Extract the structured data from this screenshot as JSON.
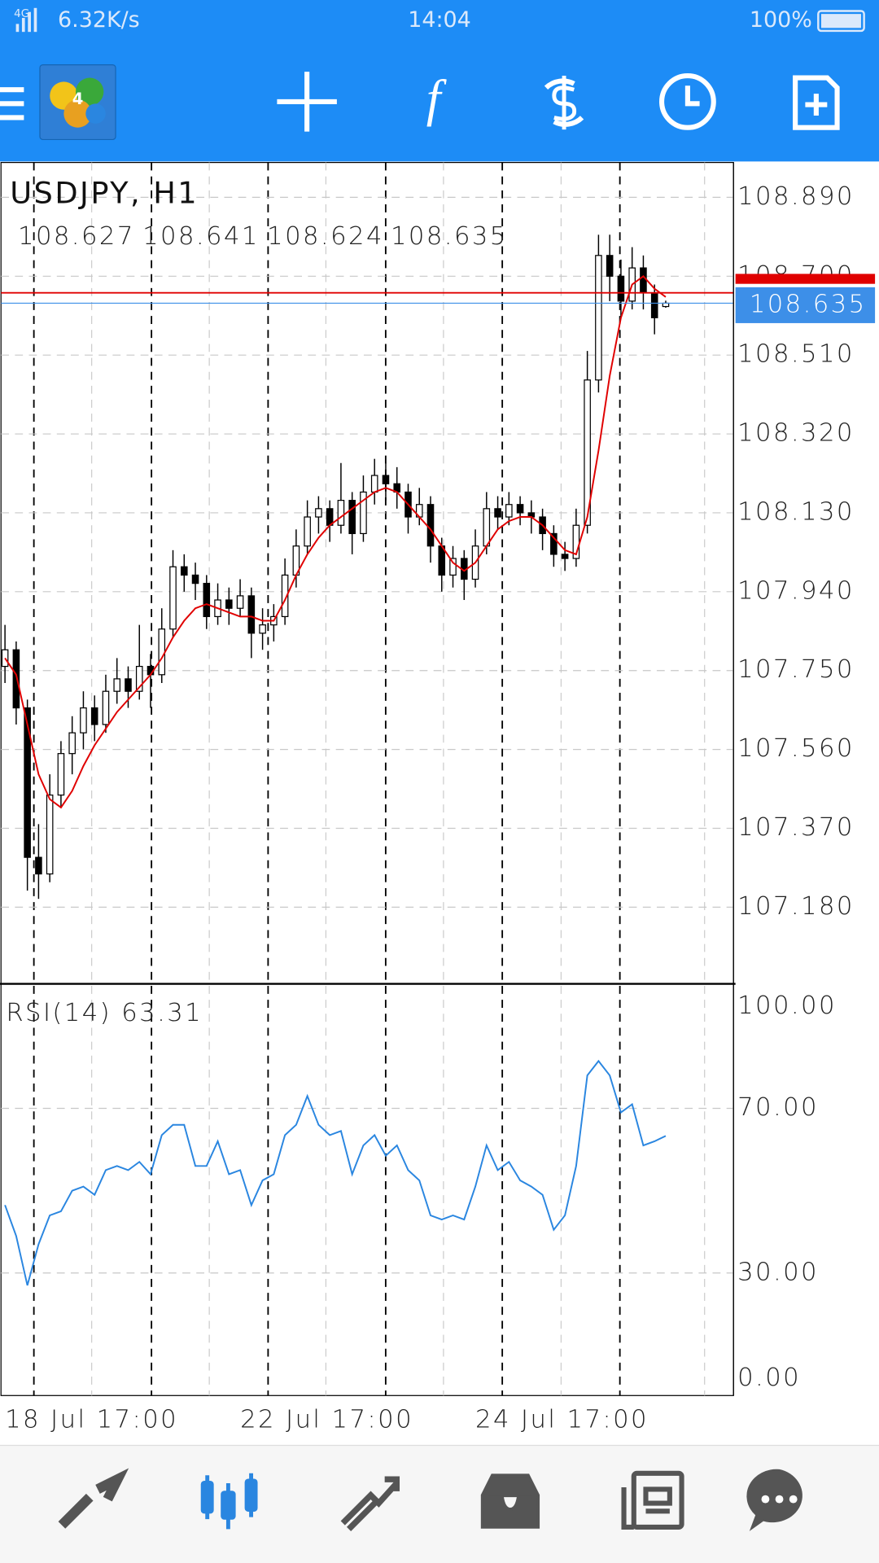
{
  "status_bar": {
    "network": "4G",
    "speed": "6.32K/s",
    "time": "14:04",
    "battery": "100%"
  },
  "chart_data": [
    {
      "type": "candlestick",
      "title": "USDJPY, H1",
      "ohlc_text": [
        "108.627",
        "108.641",
        "108.624",
        "108.635"
      ],
      "categories": [
        "18 Jul 17:00",
        null,
        null,
        null,
        null,
        null,
        null,
        null,
        null,
        null,
        null,
        null,
        null,
        null,
        null,
        null,
        null,
        null,
        null,
        null,
        null,
        "22 Jul 17:00",
        null,
        null,
        null,
        null,
        null,
        null,
        null,
        null,
        null,
        null,
        null,
        null,
        null,
        null,
        null,
        null,
        null,
        null,
        null,
        null,
        "24 Jul 17:00",
        null,
        null,
        null,
        null,
        null,
        null,
        null,
        null,
        null,
        null,
        null,
        null,
        null,
        null,
        null,
        null,
        null
      ],
      "bull_color": "#ffffff",
      "bear_color": "#000000",
      "candles": [
        [
          107.76,
          107.86,
          107.72,
          107.8
        ],
        [
          107.8,
          107.82,
          107.62,
          107.66
        ],
        [
          107.66,
          107.68,
          107.22,
          107.3
        ],
        [
          107.3,
          107.38,
          107.2,
          107.26
        ],
        [
          107.26,
          107.5,
          107.24,
          107.45
        ],
        [
          107.45,
          107.58,
          107.42,
          107.55
        ],
        [
          107.55,
          107.64,
          107.5,
          107.6
        ],
        [
          107.6,
          107.7,
          107.56,
          107.66
        ],
        [
          107.66,
          107.69,
          107.58,
          107.62
        ],
        [
          107.62,
          107.74,
          107.6,
          107.7
        ],
        [
          107.7,
          107.78,
          107.67,
          107.73
        ],
        [
          107.73,
          107.76,
          107.66,
          107.7
        ],
        [
          107.7,
          107.86,
          107.68,
          107.76
        ],
        [
          107.76,
          107.79,
          107.66,
          107.74
        ],
        [
          107.74,
          107.9,
          107.72,
          107.85
        ],
        [
          107.85,
          108.04,
          107.83,
          108.0
        ],
        [
          108.0,
          108.03,
          107.94,
          107.98
        ],
        [
          107.98,
          108.01,
          107.92,
          107.96
        ],
        [
          107.96,
          107.98,
          107.85,
          107.88
        ],
        [
          107.88,
          107.96,
          107.86,
          107.92
        ],
        [
          107.92,
          107.95,
          107.86,
          107.9
        ],
        [
          107.9,
          107.97,
          107.88,
          107.93
        ],
        [
          107.93,
          107.95,
          107.78,
          107.84
        ],
        [
          107.84,
          107.9,
          107.8,
          107.86
        ],
        [
          107.86,
          107.91,
          107.82,
          107.88
        ],
        [
          107.88,
          108.02,
          107.86,
          107.98
        ],
        [
          107.98,
          108.09,
          107.95,
          108.05
        ],
        [
          108.05,
          108.16,
          108.03,
          108.12
        ],
        [
          108.12,
          108.17,
          108.08,
          108.14
        ],
        [
          108.14,
          108.16,
          108.06,
          108.1
        ],
        [
          108.1,
          108.25,
          108.08,
          108.16
        ],
        [
          108.16,
          108.18,
          108.03,
          108.08
        ],
        [
          108.08,
          108.22,
          108.06,
          108.18
        ],
        [
          108.18,
          108.26,
          108.15,
          108.22
        ],
        [
          108.22,
          108.25,
          108.16,
          108.2
        ],
        [
          108.2,
          108.24,
          108.14,
          108.18
        ],
        [
          108.18,
          108.2,
          108.08,
          108.12
        ],
        [
          108.12,
          108.19,
          108.1,
          108.15
        ],
        [
          108.15,
          108.17,
          108.01,
          108.05
        ],
        [
          108.05,
          108.07,
          107.94,
          107.98
        ],
        [
          107.98,
          108.05,
          107.95,
          108.02
        ],
        [
          108.02,
          108.04,
          107.92,
          107.97
        ],
        [
          107.97,
          108.09,
          107.95,
          108.05
        ],
        [
          108.05,
          108.18,
          108.03,
          108.14
        ],
        [
          108.14,
          108.17,
          108.09,
          108.12
        ],
        [
          108.12,
          108.18,
          108.1,
          108.15
        ],
        [
          108.15,
          108.17,
          108.1,
          108.13
        ],
        [
          108.13,
          108.16,
          108.08,
          108.12
        ],
        [
          108.12,
          108.14,
          108.04,
          108.08
        ],
        [
          108.08,
          108.1,
          108.0,
          108.03
        ],
        [
          108.03,
          108.06,
          107.99,
          108.02
        ],
        [
          108.02,
          108.14,
          108.0,
          108.1
        ],
        [
          108.1,
          108.52,
          108.08,
          108.45
        ],
        [
          108.45,
          108.8,
          108.42,
          108.75
        ],
        [
          108.75,
          108.8,
          108.64,
          108.7
        ],
        [
          108.7,
          108.74,
          108.6,
          108.64
        ],
        [
          108.64,
          108.77,
          108.62,
          108.72
        ],
        [
          108.72,
          108.75,
          108.62,
          108.66
        ],
        [
          108.66,
          108.68,
          108.56,
          108.6
        ],
        [
          108.627,
          108.641,
          108.624,
          108.635
        ]
      ],
      "overlay": {
        "color": "#e00000",
        "values": [
          107.78,
          107.74,
          107.62,
          107.5,
          107.44,
          107.42,
          107.46,
          107.52,
          107.57,
          107.61,
          107.65,
          107.68,
          107.71,
          107.74,
          107.78,
          107.83,
          107.87,
          107.9,
          107.91,
          107.9,
          107.89,
          107.88,
          107.88,
          107.87,
          107.87,
          107.92,
          107.98,
          108.03,
          108.07,
          108.1,
          108.12,
          108.14,
          108.16,
          108.18,
          108.19,
          108.18,
          108.15,
          108.12,
          108.09,
          108.05,
          108.01,
          107.99,
          108.01,
          108.05,
          108.09,
          108.11,
          108.12,
          108.12,
          108.1,
          108.07,
          108.04,
          108.03,
          108.12,
          108.28,
          108.46,
          108.6,
          108.68,
          108.7,
          108.67,
          108.65
        ]
      },
      "ask_line": {
        "value": 108.66,
        "color": "#e00000"
      },
      "bid_line": {
        "value": 108.635,
        "label": "108.635",
        "color": "#3d8fe8"
      },
      "ylim": [
        107.0,
        108.974
      ],
      "yticks": [
        {
          "value": 108.89,
          "label": "108.890"
        },
        {
          "value": 108.7,
          "label": "108.700"
        },
        {
          "value": 108.51,
          "label": "108.510"
        },
        {
          "value": 108.32,
          "label": "108.320"
        },
        {
          "value": 108.13,
          "label": "108.130"
        },
        {
          "value": 107.94,
          "label": "107.940"
        },
        {
          "value": 107.75,
          "label": "107.750"
        },
        {
          "value": 107.56,
          "label": "107.560"
        },
        {
          "value": 107.37,
          "label": "107.370"
        },
        {
          "value": 107.18,
          "label": "107.180"
        }
      ],
      "grid": true
    },
    {
      "type": "line",
      "title": "RSI(14) 63.31",
      "color": "#2a86e0",
      "values": [
        46.5,
        39,
        27,
        37,
        44,
        45,
        50,
        51,
        49,
        55,
        56,
        55,
        57,
        54,
        63.5,
        66,
        66,
        56,
        56,
        62,
        54,
        55,
        46.5,
        52.5,
        54,
        63.5,
        66,
        73,
        66,
        63.5,
        64.5,
        54,
        61,
        63.5,
        58.5,
        61,
        55,
        52.5,
        44,
        43,
        44,
        43,
        51,
        61,
        55,
        57,
        52.5,
        51,
        49,
        40.5,
        44,
        56,
        78,
        81.5,
        78,
        69,
        71,
        61,
        62,
        63.31
      ],
      "ylim": [
        0,
        100
      ],
      "yticks": [
        {
          "value": 100,
          "label": "100.00"
        },
        {
          "value": 70,
          "label": "70.00"
        },
        {
          "value": 30,
          "label": "30.00"
        },
        {
          "value": 0,
          "label": "0.00"
        }
      ],
      "grid": true
    }
  ]
}
